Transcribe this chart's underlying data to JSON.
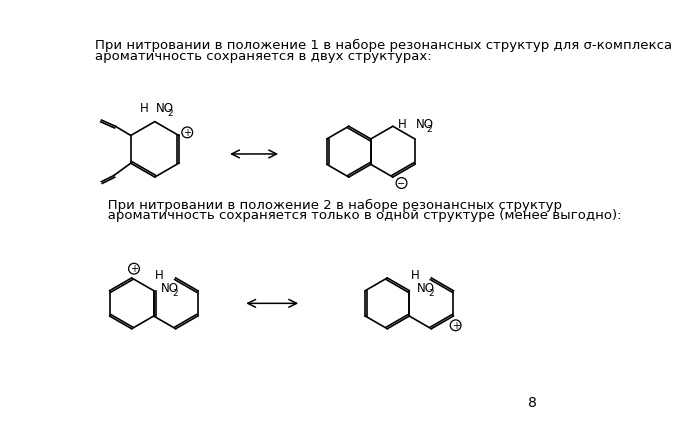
{
  "text1": "При нитровании в положение 1 в наборе резонансных структур для σ-комплекса",
  "text1b": "ароматичность сохраняется в двух структурах:",
  "text2": "   При нитровании в положение 2 в наборе резонансных структур",
  "text2b": "   ароматичность сохраняется только в одной структуре (менее выгодно):",
  "page_number": "8",
  "bg_color": "#ffffff",
  "line_color": "#000000",
  "fontsize_text": 9.5
}
